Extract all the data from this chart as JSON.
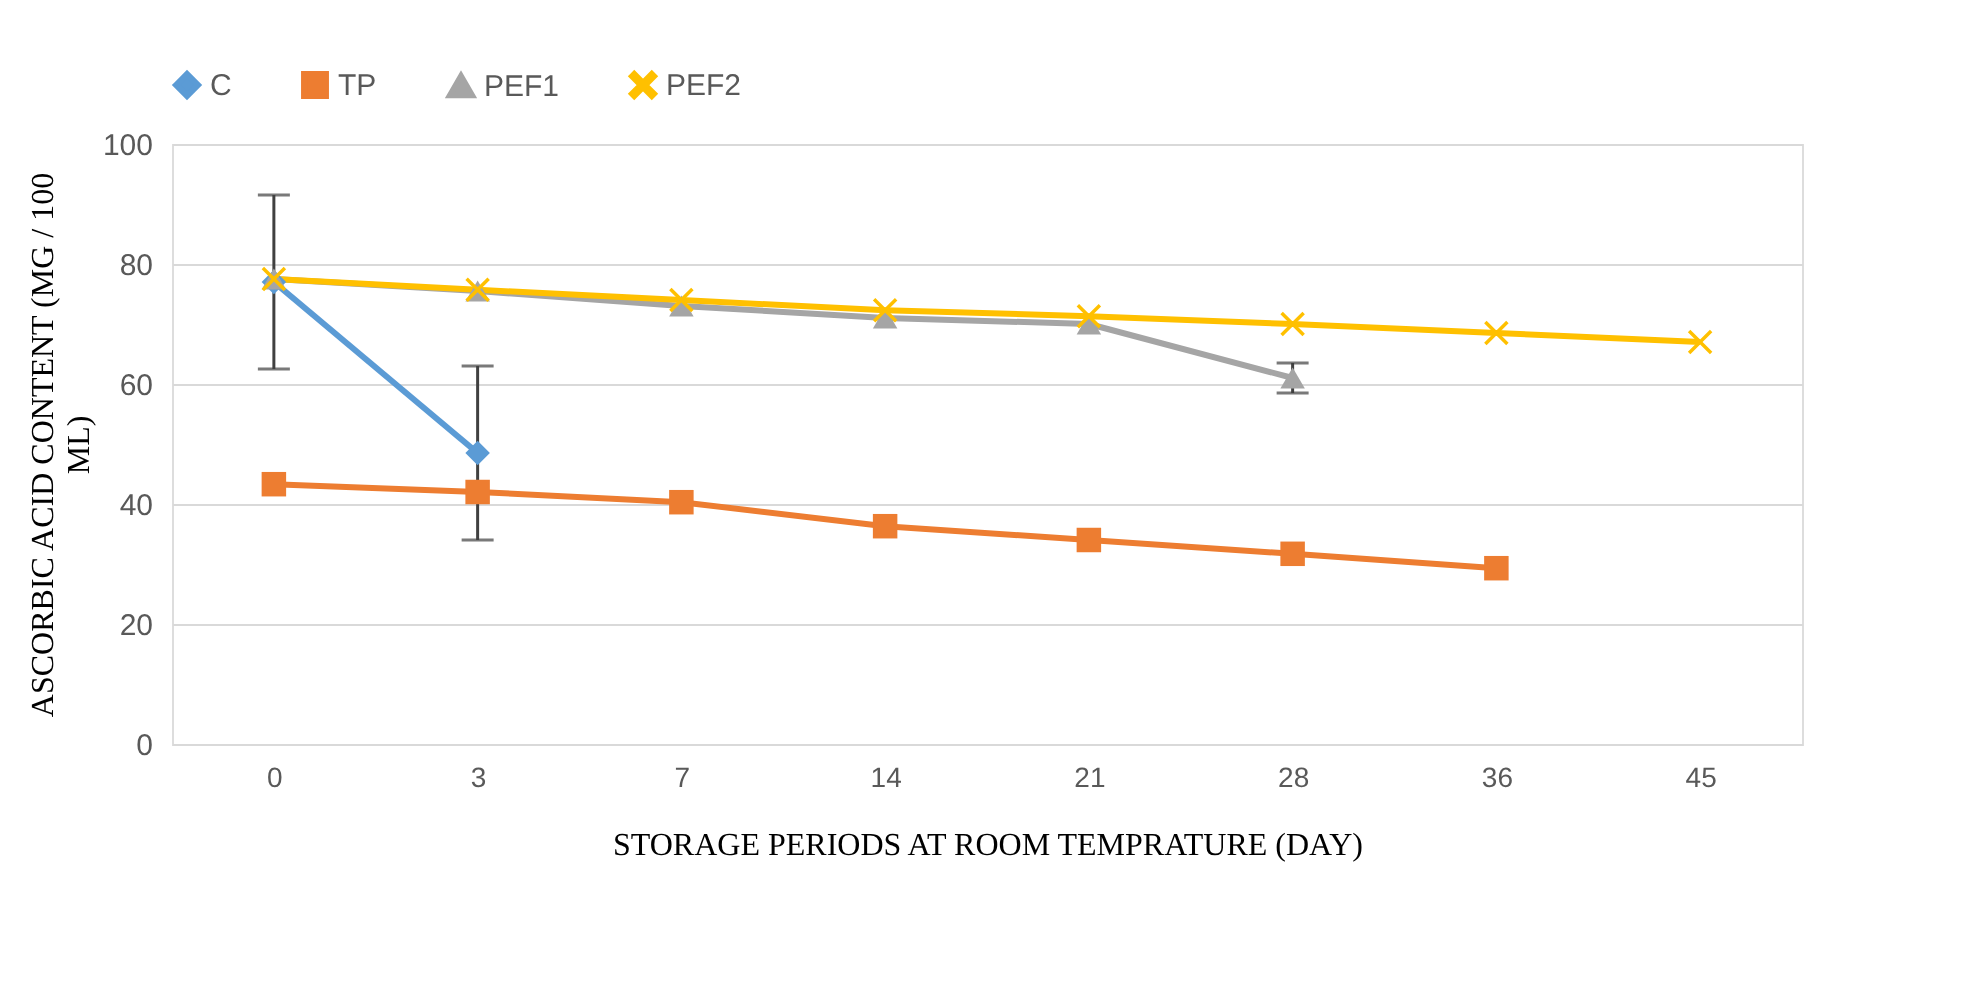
{
  "chart_data": {
    "type": "line",
    "xlabel": "STORAGE PERIODS AT ROOM TEMPRATURE (DAY)",
    "ylabel": "ASCORBIC ACID CONTENT (MG / 100 ML)",
    "categories": [
      "0",
      "3",
      "7",
      "14",
      "21",
      "28",
      "36",
      "45"
    ],
    "series": [
      {
        "name": "C",
        "color": "#5b9bd5",
        "marker": "diamond",
        "values": [
          77,
          48.5,
          null,
          null,
          null,
          null,
          null,
          null
        ],
        "errors": [
          14.5,
          14.5,
          null,
          null,
          null,
          null,
          null,
          null
        ]
      },
      {
        "name": "TP",
        "color": "#ed7d31",
        "marker": "square",
        "values": [
          43.3,
          42,
          40.3,
          36.3,
          34,
          31.7,
          29.3,
          null
        ]
      },
      {
        "name": "PEF1",
        "color": "#a5a5a5",
        "marker": "triangle",
        "values": [
          77.5,
          75.5,
          73,
          71,
          70,
          61,
          null,
          null
        ],
        "errors": [
          null,
          null,
          null,
          null,
          null,
          2.5,
          null,
          null
        ]
      },
      {
        "name": "PEF2",
        "color": "#ffc000",
        "marker": "cross",
        "values": [
          77.5,
          75.7,
          74,
          72.3,
          71.3,
          70,
          68.5,
          67
        ]
      }
    ],
    "ylim": [
      0,
      100
    ],
    "yticks": [
      0,
      20,
      40,
      60,
      80,
      100
    ],
    "grid": "y",
    "legend": "top",
    "line_style": "solid"
  }
}
